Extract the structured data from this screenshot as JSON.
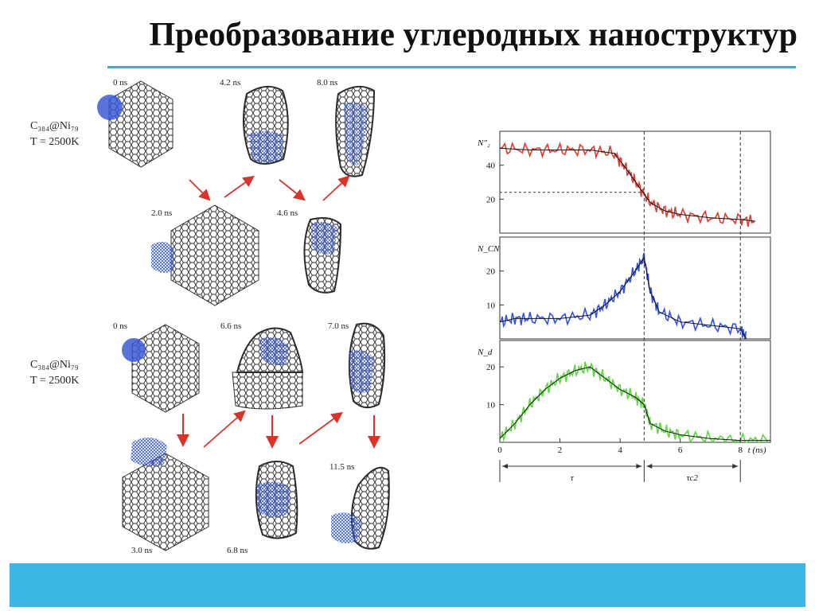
{
  "title": "Преобразование углеродных наноструктур",
  "colors": {
    "accent": "#35b2dc",
    "band": "#3ab8e3",
    "nanotube": "#2b2b2b",
    "nickel": "#3b5bd6"
  },
  "figure": {
    "system_label_1": "C₃₈₄@Ni₇₉",
    "temp_label_1": "T = 2500K",
    "system_label_2": "C₃₈₄@Ni₇₉",
    "temp_label_2": "T = 2500K",
    "times_top": [
      "0 ns",
      "4.2 ns",
      "8.0 ns",
      "2.0 ns",
      "4.6 ns"
    ],
    "times_bottom": [
      "0 ns",
      "6.6 ns",
      "7.0 ns",
      "3.0 ns",
      "6.8 ns",
      "11.5 ns"
    ]
  },
  "chart_data": [
    {
      "type": "line",
      "ylabel": "N″₂",
      "xlim": [
        0,
        9
      ],
      "ylim": [
        0,
        60
      ],
      "yticks": [
        20,
        40
      ],
      "color": "#d42a1c",
      "x": [
        0,
        1,
        2,
        3,
        3.8,
        4.2,
        4.6,
        5.0,
        5.5,
        6,
        7,
        8,
        8.5
      ],
      "y": [
        50,
        49,
        49,
        49,
        47,
        38,
        28,
        18,
        13,
        11,
        9,
        8,
        7
      ],
      "threshold": 24
    },
    {
      "type": "line",
      "ylabel": "N_CN",
      "xlim": [
        0,
        9
      ],
      "ylim": [
        0,
        30
      ],
      "yticks": [
        10,
        20
      ],
      "color": "#1f3fd6",
      "x": [
        0,
        0.5,
        1,
        2,
        3,
        3.5,
        4,
        4.5,
        4.8,
        5.0,
        5.3,
        6,
        7,
        8,
        8.2
      ],
      "y": [
        5,
        6,
        6,
        6,
        7,
        10,
        14,
        20,
        24,
        14,
        8,
        5,
        4,
        3,
        0
      ]
    },
    {
      "type": "line",
      "ylabel": "N_d",
      "xlim": [
        0,
        9
      ],
      "ylim": [
        0,
        27
      ],
      "yticks": [
        10,
        20
      ],
      "color": "#4fd22d",
      "xticks": [
        0,
        2,
        4,
        6,
        8
      ],
      "xlabel": "t (ns)",
      "x": [
        0,
        0.5,
        1,
        1.5,
        2,
        2.5,
        3,
        3.5,
        4,
        4.5,
        4.8,
        5.0,
        5.5,
        6,
        7,
        8,
        9
      ],
      "y": [
        1,
        5,
        10,
        14,
        17,
        19,
        20,
        17,
        14,
        12,
        10,
        5,
        3,
        2,
        1,
        0.5,
        0.5
      ]
    }
  ],
  "markers": {
    "dashed_x": [
      4.8,
      8.0
    ],
    "tau_label": "τ",
    "tau_c2_label": "τc2"
  }
}
